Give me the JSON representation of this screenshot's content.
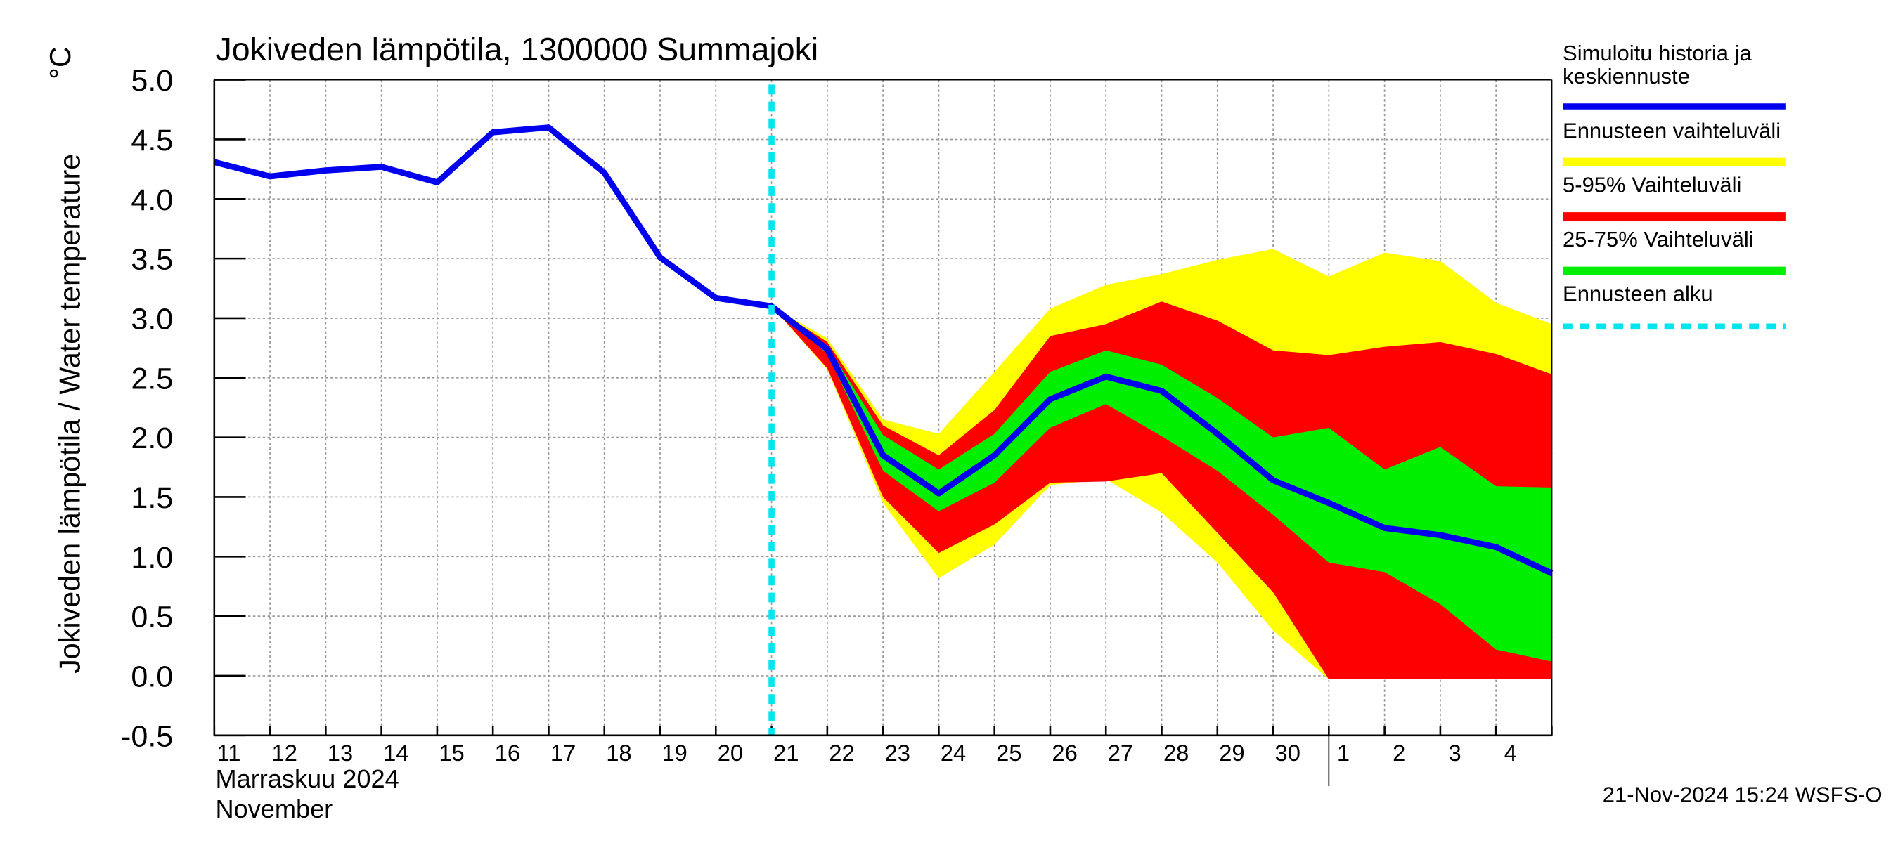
{
  "chart_data": {
    "type": "line",
    "title": "Jokiveden lämpötila, 1300000 Summajoki",
    "ylabel": "Jokiveden lämpötila / Water temperature",
    "yunit": "°C",
    "xlabel": [
      "Marraskuu 2024",
      "November"
    ],
    "footer": "21-Nov-2024 15:24 WSFS-O",
    "categories": [
      "11",
      "12",
      "13",
      "14",
      "15",
      "16",
      "17",
      "18",
      "19",
      "20",
      "21",
      "22",
      "23",
      "24",
      "25",
      "26",
      "27",
      "28",
      "29",
      "30",
      "1",
      "2",
      "3",
      "4",
      null
    ],
    "month_start": "1",
    "ylim": [
      -0.5,
      5.0
    ],
    "yticks": [
      {
        "value": -0.5,
        "label": "-0.5"
      },
      {
        "value": 0,
        "label": "0.0"
      },
      {
        "value": 0.5,
        "label": "0.5"
      },
      {
        "value": 1,
        "label": "1.0"
      },
      {
        "value": 1.5,
        "label": "1.5"
      },
      {
        "value": 2,
        "label": "2.0"
      },
      {
        "value": 2.5,
        "label": "2.5"
      },
      {
        "value": 3,
        "label": "3.0"
      },
      {
        "value": 3.5,
        "label": "3.5"
      },
      {
        "value": 4,
        "label": "4.0"
      },
      {
        "value": 4.5,
        "label": "4.5"
      },
      {
        "value": 5,
        "label": "5.0"
      }
    ],
    "grid": true,
    "series": [
      {
        "name": "Simuloitu historia ja\nkeskiennuste",
        "color": "#0000ee",
        "values": [
          4.31,
          4.19,
          4.24,
          4.27,
          4.14,
          4.56,
          4.6,
          4.22,
          3.51,
          3.17,
          3.1,
          2.74,
          1.85,
          1.53,
          1.85,
          2.32,
          2.51,
          2.39,
          2.03,
          1.64,
          1.45,
          1.24,
          1.18,
          1.08,
          0.86
        ]
      }
    ],
    "bands": [
      {
        "name": "Ennusteen vaihteluväli",
        "color": "#ffff00",
        "upper": [
          null,
          null,
          null,
          null,
          null,
          null,
          null,
          null,
          null,
          null,
          3.1,
          2.83,
          2.15,
          2.03,
          2.55,
          3.08,
          3.28,
          3.37,
          3.49,
          3.58,
          3.35,
          3.55,
          3.48,
          3.13,
          2.95
        ],
        "lower": [
          null,
          null,
          null,
          null,
          null,
          null,
          null,
          null,
          null,
          null,
          3.1,
          2.57,
          1.45,
          0.82,
          1.1,
          1.6,
          1.65,
          1.37,
          0.95,
          0.38,
          -0.03,
          -0.03,
          -0.03,
          -0.03,
          -0.03
        ]
      },
      {
        "name": "5-95% Vaihteluväli",
        "color": "#ff0000",
        "upper": [
          null,
          null,
          null,
          null,
          null,
          null,
          null,
          null,
          null,
          null,
          3.1,
          2.8,
          2.1,
          1.85,
          2.23,
          2.85,
          2.95,
          3.14,
          2.98,
          2.73,
          2.69,
          2.76,
          2.8,
          2.7,
          2.53
        ],
        "lower": [
          null,
          null,
          null,
          null,
          null,
          null,
          null,
          null,
          null,
          null,
          3.1,
          2.58,
          1.5,
          1.03,
          1.27,
          1.62,
          1.63,
          1.7,
          1.2,
          0.7,
          -0.03,
          -0.03,
          -0.03,
          -0.03,
          -0.03
        ]
      },
      {
        "name": "25-75% Vaihteluväli",
        "color": "#00ee00",
        "upper": [
          null,
          null,
          null,
          null,
          null,
          null,
          null,
          null,
          null,
          null,
          3.1,
          2.77,
          2.02,
          1.73,
          2.03,
          2.55,
          2.73,
          2.61,
          2.33,
          2.0,
          2.08,
          1.73,
          1.92,
          1.59,
          1.58
        ],
        "lower": [
          null,
          null,
          null,
          null,
          null,
          null,
          null,
          null,
          null,
          null,
          3.1,
          2.7,
          1.72,
          1.38,
          1.62,
          2.08,
          2.28,
          2.01,
          1.72,
          1.35,
          0.95,
          0.87,
          0.6,
          0.22,
          0.12
        ]
      }
    ],
    "forecast_start": {
      "name": "Ennusteen alku",
      "color": "#00e5ee",
      "category": "21"
    }
  }
}
